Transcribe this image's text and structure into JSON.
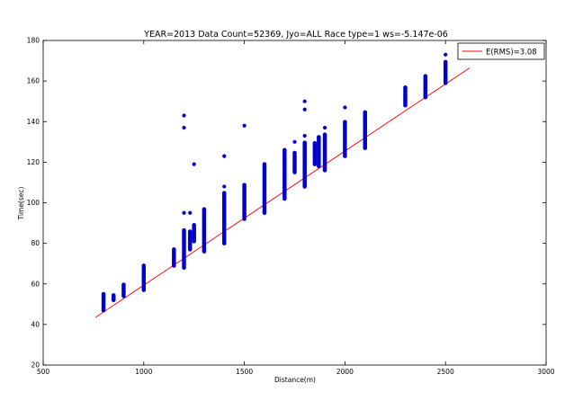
{
  "chart_data": {
    "type": "scatter",
    "title": "YEAR=2013 Data Count=52369, Jyo=ALL Race type=1 ws=-5.147e-06",
    "xlabel": "Distance(m)",
    "ylabel": "Time(sec)",
    "xlim": [
      500,
      3000
    ],
    "ylim": [
      20,
      180
    ],
    "xticks": [
      500,
      1000,
      1500,
      2000,
      2500,
      3000
    ],
    "yticks": [
      20,
      40,
      60,
      80,
      100,
      120,
      140,
      160,
      180
    ],
    "grid": false,
    "legend_position": "top-right",
    "line_series": {
      "name": "E(RMS)=3.08",
      "color": "#ff0000",
      "x": [
        760,
        2620
      ],
      "y": [
        43.5,
        166.5
      ]
    },
    "scatter_series": {
      "color": "#0000cc",
      "columns": [
        {
          "x": 800,
          "ymin": 47,
          "ymax": 55
        },
        {
          "x": 850,
          "ymin": 52,
          "ymax": 55
        },
        {
          "x": 900,
          "ymin": 54,
          "ymax": 60
        },
        {
          "x": 1000,
          "ymin": 57,
          "ymax": 69
        },
        {
          "x": 1150,
          "ymin": 69,
          "ymax": 77
        },
        {
          "x": 1200,
          "ymin": 68,
          "ymax": 87
        },
        {
          "x": 1230,
          "ymin": 77,
          "ymax": 86
        },
        {
          "x": 1250,
          "ymin": 81,
          "ymax": 89
        },
        {
          "x": 1300,
          "ymin": 76,
          "ymax": 97
        },
        {
          "x": 1400,
          "ymin": 80,
          "ymax": 105
        },
        {
          "x": 1500,
          "ymin": 92,
          "ymax": 109
        },
        {
          "x": 1600,
          "ymin": 95,
          "ymax": 119
        },
        {
          "x": 1700,
          "ymin": 102,
          "ymax": 126
        },
        {
          "x": 1750,
          "ymin": 115,
          "ymax": 125
        },
        {
          "x": 1800,
          "ymin": 108,
          "ymax": 130
        },
        {
          "x": 1850,
          "ymin": 119,
          "ymax": 130
        },
        {
          "x": 1870,
          "ymin": 118,
          "ymax": 133
        },
        {
          "x": 1900,
          "ymin": 116,
          "ymax": 134
        },
        {
          "x": 2000,
          "ymin": 123,
          "ymax": 140
        },
        {
          "x": 2100,
          "ymin": 127,
          "ymax": 145
        },
        {
          "x": 2300,
          "ymin": 148,
          "ymax": 157
        },
        {
          "x": 2400,
          "ymin": 152,
          "ymax": 163
        },
        {
          "x": 2500,
          "ymin": 159,
          "ymax": 170
        }
      ],
      "outliers": [
        {
          "x": 1200,
          "y": 143
        },
        {
          "x": 1200,
          "y": 137
        },
        {
          "x": 1200,
          "y": 95
        },
        {
          "x": 1230,
          "y": 95
        },
        {
          "x": 1250,
          "y": 119
        },
        {
          "x": 1400,
          "y": 123
        },
        {
          "x": 1400,
          "y": 108
        },
        {
          "x": 1500,
          "y": 138
        },
        {
          "x": 1750,
          "y": 130
        },
        {
          "x": 1800,
          "y": 150
        },
        {
          "x": 1800,
          "y": 146
        },
        {
          "x": 1800,
          "y": 133
        },
        {
          "x": 1900,
          "y": 137
        },
        {
          "x": 2000,
          "y": 147
        },
        {
          "x": 2300,
          "y": 150
        },
        {
          "x": 2500,
          "y": 173
        },
        {
          "x": 2500,
          "y": 168
        }
      ]
    }
  }
}
